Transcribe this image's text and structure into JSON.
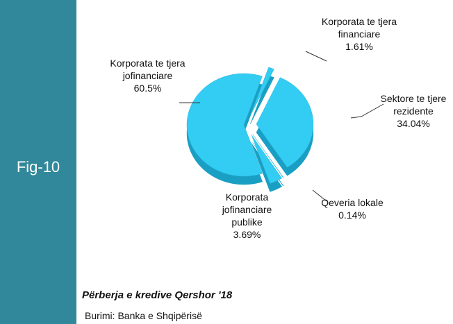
{
  "chart_data": {
    "type": "pie",
    "figure_label": "Fig-10",
    "title": "Përberja e kredive Qershor '18",
    "source": "Burimi: Banka e Shqipërisë",
    "categories": [
      "Korporata te tjera jofinanciare",
      "Korporata te tjera financiare",
      "Sektore te tjere rezidente",
      "Qeveria lokale",
      "Korporata jofinanciare publike"
    ],
    "values": [
      60.5,
      1.61,
      34.04,
      0.14,
      3.69
    ],
    "value_labels": [
      "60.5%",
      "1.61%",
      "34.04%",
      "0.14%",
      "3.69%"
    ],
    "color": "#33ccf2"
  }
}
